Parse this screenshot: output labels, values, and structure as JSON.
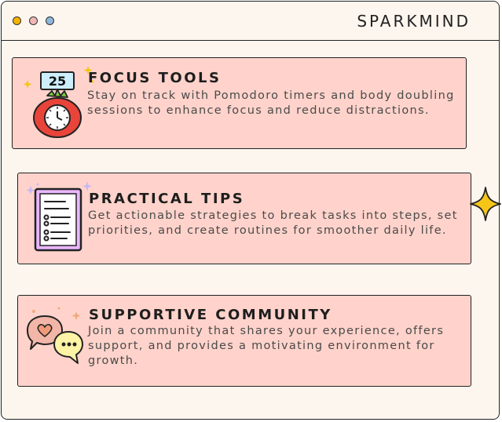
{
  "app": {
    "brand": "SPARKMIND",
    "window_dots": [
      "#f5b400",
      "#f1b7b7",
      "#8fb7dc"
    ]
  },
  "cards": [
    {
      "title": "FOCUS TOOLS",
      "description": "Stay on track with Pomodoro timers and body doubling sessions to enhance focus and reduce distractions.",
      "icon": "pomodoro-timer-icon",
      "timer_label": "25"
    },
    {
      "title": "PRACTICAL TIPS",
      "description": "Get actionable strategies to break tasks into steps, set priorities, and create routines for smoother daily life.",
      "icon": "checklist-icon"
    },
    {
      "title": "SUPPORTIVE COMMUNITY",
      "description": "Join a community that shares your experience, offers support, and provides a motivating environment for growth.",
      "icon": "chat-bubbles-icon"
    }
  ],
  "colors": {
    "card_background": "#ffd3cb",
    "window_background": "#fcf6ee",
    "accent_yellow": "#f5c518",
    "tomato_red": "#e8443a",
    "checklist_purple": "#e9b6ff"
  }
}
